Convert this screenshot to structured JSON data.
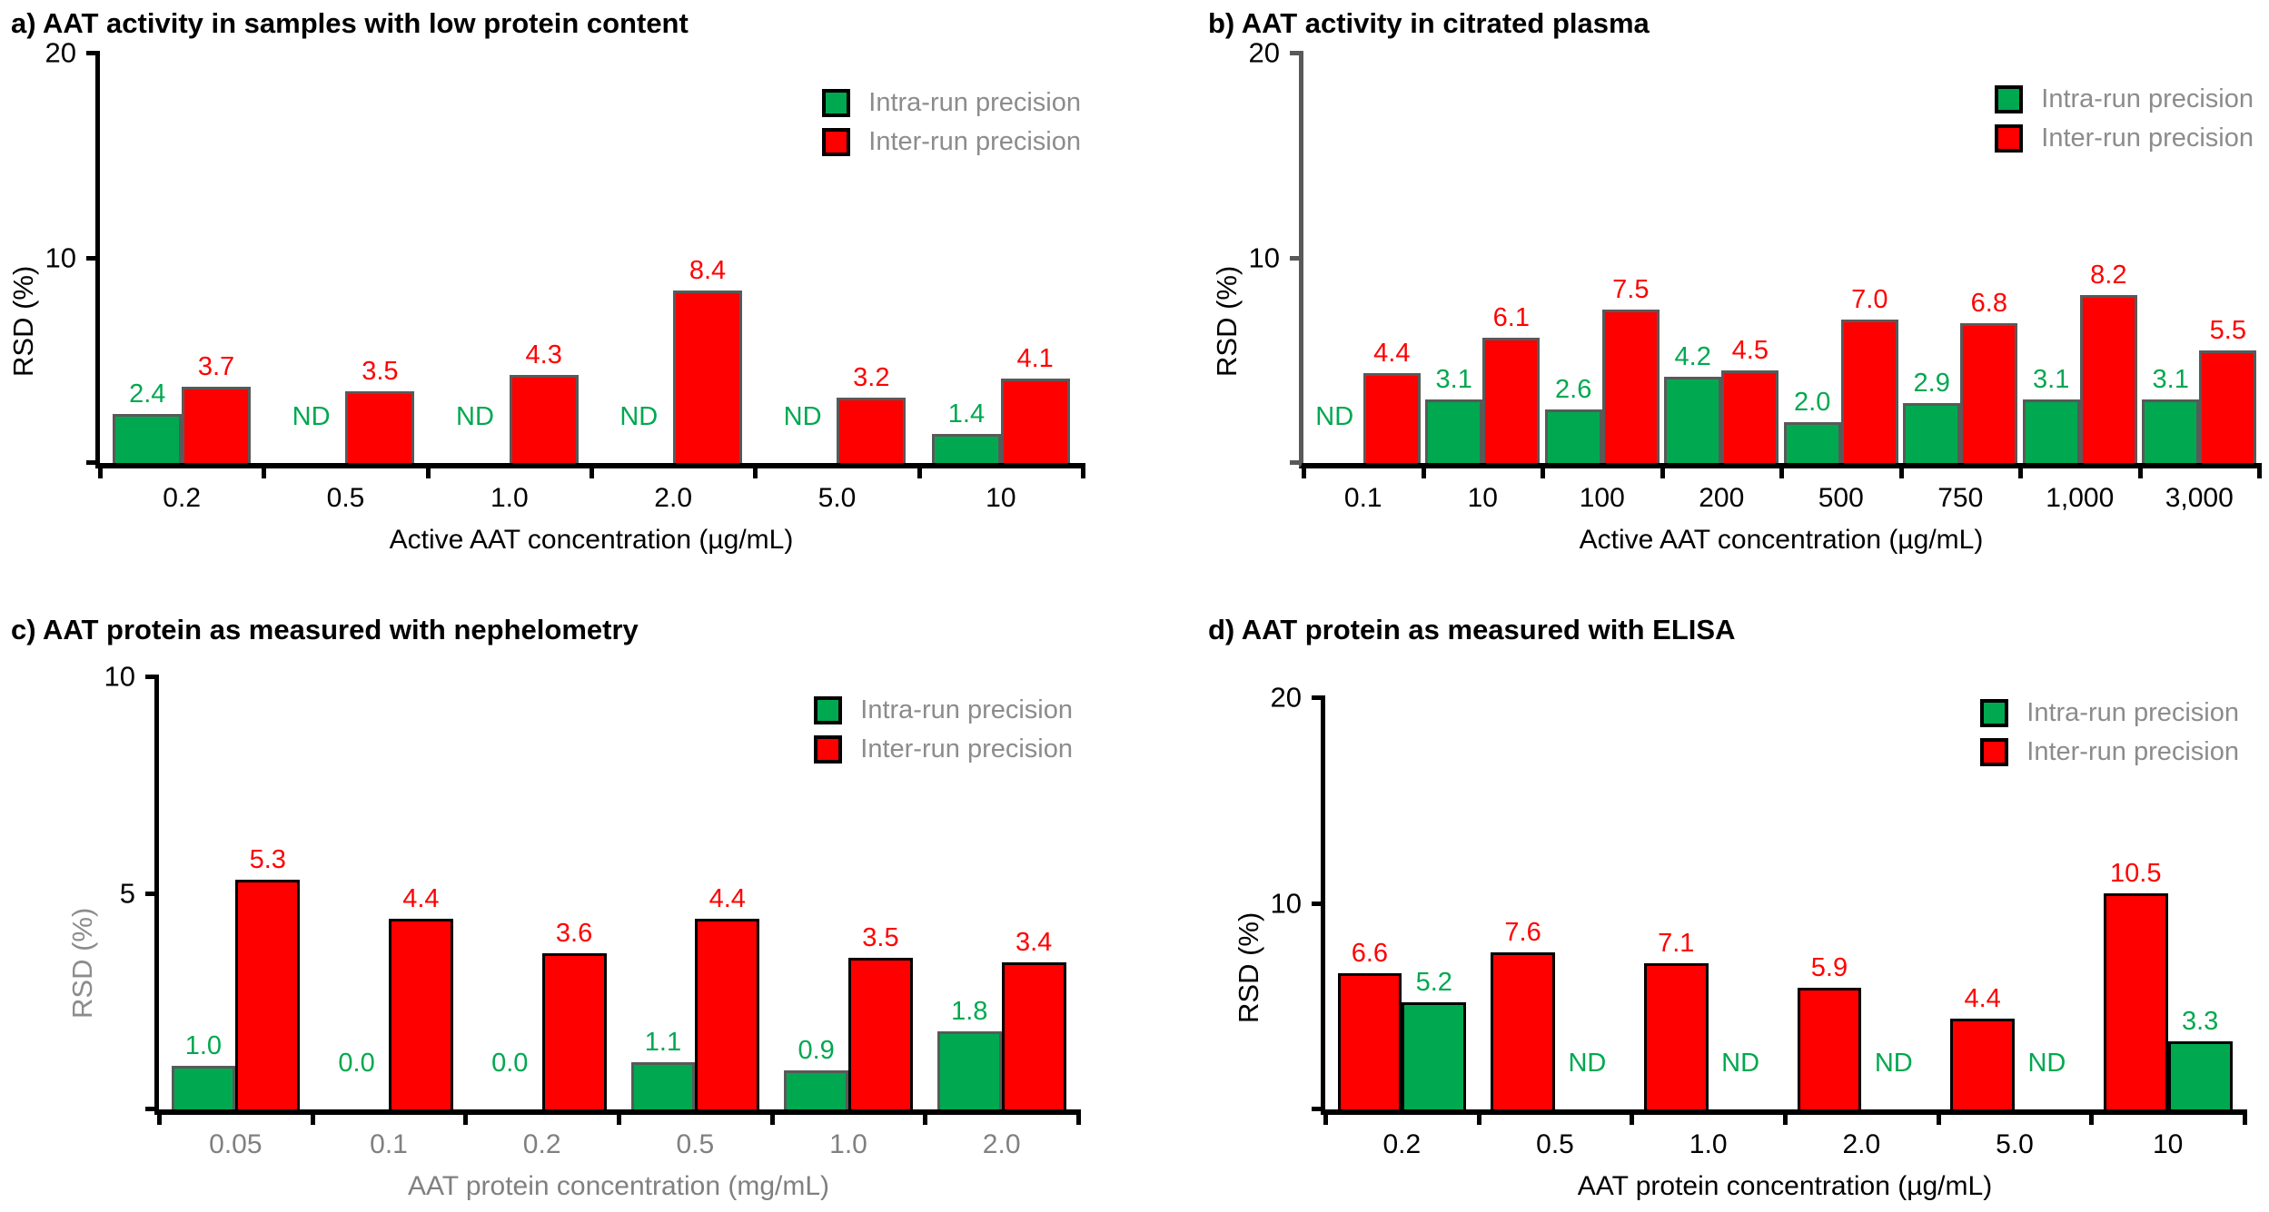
{
  "figure": {
    "ylabel": "RSD (%)",
    "nd_label": "ND",
    "legend": {
      "intra_label": "Intra-run precision",
      "inter_label": "Inter-run precision"
    },
    "colors": {
      "intra_green": "#00A850",
      "inter_red": "#FF0000",
      "legend_text_gray": "#8C8C8C",
      "gray_axis_text": "#808080",
      "axis_black": "#000000",
      "axis_gray": "#595959"
    }
  },
  "chart_data": [
    {
      "id": "a",
      "type": "bar",
      "title": "a) AAT activity in samples with low protein content",
      "xlabel": "Active AAT concentration (µg/mL)",
      "ylabel": "RSD (%)",
      "ylim": [
        0,
        20
      ],
      "yticks": [
        "20",
        "10"
      ],
      "grid": "off",
      "legend_position": "top-right",
      "categories": [
        "0.2",
        "0.5",
        "1.0",
        "2.0",
        "5.0",
        "10"
      ],
      "series": [
        {
          "name": "Intra-run precision",
          "role": "intra",
          "values": [
            2.4,
            null,
            null,
            null,
            null,
            1.4
          ],
          "labels": [
            "2.4",
            "ND",
            "ND",
            "ND",
            "ND",
            "1.4"
          ]
        },
        {
          "name": "Inter-run precision",
          "role": "inter",
          "values": [
            3.7,
            3.5,
            4.3,
            8.4,
            3.2,
            4.1
          ],
          "labels": [
            "3.7",
            "3.5",
            "4.3",
            "8.4",
            "3.2",
            "4.1"
          ]
        }
      ]
    },
    {
      "id": "b",
      "type": "bar",
      "title": "b) AAT activity in citrated plasma",
      "xlabel": "Active AAT concentration (µg/mL)",
      "ylabel": "RSD (%)",
      "ylim": [
        0,
        20
      ],
      "yticks": [
        "20",
        "10"
      ],
      "grid": "off",
      "legend_position": "top-right",
      "categories": [
        "0.1",
        "10",
        "100",
        "200",
        "500",
        "750",
        "1,000",
        "3,000"
      ],
      "series": [
        {
          "name": "Intra-run precision",
          "role": "intra",
          "values": [
            null,
            3.1,
            2.6,
            4.2,
            2.0,
            2.9,
            3.1,
            3.1
          ],
          "labels": [
            "ND",
            "3.1",
            "2.6",
            "4.2",
            "2.0",
            "2.9",
            "3.1",
            "3.1"
          ]
        },
        {
          "name": "Inter-run precision",
          "role": "inter",
          "values": [
            4.4,
            6.1,
            7.5,
            4.5,
            7.0,
            6.8,
            8.2,
            5.5
          ],
          "labels": [
            "4.4",
            "6.1",
            "7.5",
            "4.5",
            "7.0",
            "6.8",
            "8.2",
            "5.5"
          ]
        }
      ]
    },
    {
      "id": "c",
      "type": "bar",
      "title": "c) AAT protein as measured with nephelometry",
      "xlabel": "AAT protein concentration (mg/mL)",
      "ylabel": "RSD (%)",
      "ylim": [
        0,
        10
      ],
      "yticks": [
        "10",
        "5"
      ],
      "grid": "off",
      "legend_position": "top-right",
      "categories": [
        "0.05",
        "0.1",
        "0.2",
        "0.5",
        "1.0",
        "2.0"
      ],
      "series": [
        {
          "name": "Intra-run precision",
          "role": "intra",
          "values": [
            1.0,
            0,
            0,
            1.1,
            0.9,
            1.8
          ],
          "labels": [
            "1.0",
            "0.0",
            "0.0",
            "1.1",
            "0.9",
            "1.8"
          ]
        },
        {
          "name": "Inter-run precision",
          "role": "inter",
          "values": [
            5.3,
            4.4,
            3.6,
            4.4,
            3.5,
            3.4
          ],
          "labels": [
            "5.3",
            "4.4",
            "3.6",
            "4.4",
            "3.5",
            "3.4"
          ]
        }
      ]
    },
    {
      "id": "d",
      "type": "bar",
      "title": "d) AAT protein as measured with ELISA",
      "xlabel": "AAT protein concentration (µg/mL)",
      "ylabel": "RSD (%)",
      "ylim": [
        0,
        20
      ],
      "yticks": [
        "20",
        "10"
      ],
      "grid": "off",
      "legend_position": "top-right",
      "categories": [
        "0.2",
        "0.5",
        "1.0",
        "2.0",
        "5.0",
        "10"
      ],
      "series": [
        {
          "name": "Inter-run precision",
          "role": "inter",
          "values": [
            6.6,
            7.6,
            7.1,
            5.9,
            4.4,
            10.5
          ],
          "labels": [
            "6.6",
            "7.6",
            "7.1",
            "5.9",
            "4.4",
            "10.5"
          ]
        },
        {
          "name": "Intra-run precision",
          "role": "intra",
          "values": [
            5.2,
            null,
            null,
            null,
            null,
            3.3
          ],
          "labels": [
            "5.2",
            "ND",
            "ND",
            "ND",
            "ND",
            "3.3"
          ]
        }
      ]
    }
  ]
}
